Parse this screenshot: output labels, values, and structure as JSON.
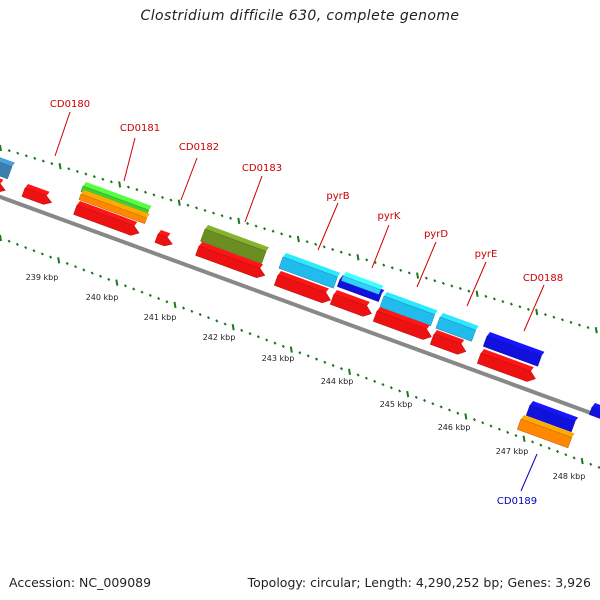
{
  "title": "Clostridium difficile 630, complete genome",
  "footer": {
    "accession_label": "Accession:",
    "accession": "NC_009089",
    "topology_label": "Topology:",
    "topology": "circular",
    "length_label": "Length:",
    "length": "4,290,252 bp",
    "genes_label": "Genes:",
    "genes": "3,926"
  },
  "colors": {
    "forward_label": "#cc0000",
    "reverse_label": "#0000bb",
    "backbone": "#888888",
    "tick": "#1a7a1a",
    "cds": "#ee1111",
    "green": "#44cc33",
    "orange": "#ff8800",
    "olive": "#6b8e23",
    "cyan": "#22bbee",
    "blue": "#1111dd",
    "steel": "#3b7fb0"
  },
  "map": {
    "start_kbp": 239,
    "end_kbp": 248,
    "kbp_unit": "kbp",
    "tick_labels": [
      "239 kbp",
      "240 kbp",
      "241 kbp",
      "242 kbp",
      "243 kbp",
      "244 kbp",
      "245 kbp",
      "246 kbp",
      "247 kbp",
      "248 kbp"
    ]
  },
  "gene_labels": {
    "forward": [
      "CD0180",
      "CD0181",
      "CD0182",
      "CD0183",
      "pyrB",
      "pyrK",
      "pyrD",
      "pyrE",
      "CD0188"
    ],
    "reverse": [
      "CD0189"
    ]
  }
}
